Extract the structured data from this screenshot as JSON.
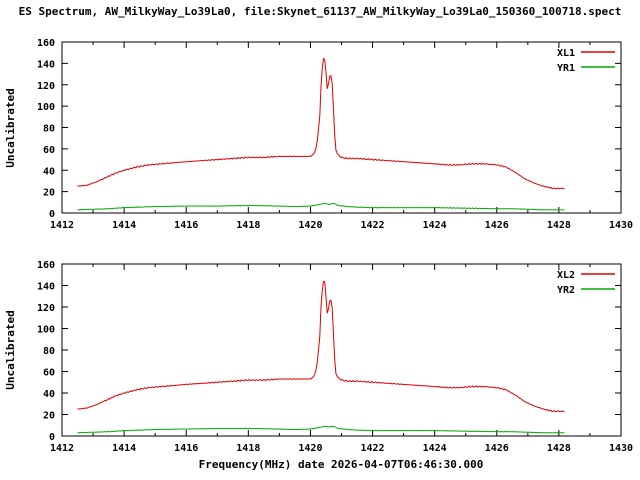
{
  "figure": {
    "title": "ES Spectrum, AW_MilkyWay_Lo39La0, file:Skynet_61137_AW_MilkyWay_Lo39La0_150360_100718.spect",
    "xlabel": "Frequency(MHz) date 2026-04-07T06:46:30.000",
    "ylabel": "Uncalibrated",
    "background": "#ffffff",
    "axis_color": "#000000"
  },
  "chart_data": [
    {
      "type": "line",
      "panel": "top",
      "xlim": [
        1412,
        1430
      ],
      "ylim": [
        0,
        160
      ],
      "xticks": [
        1412,
        1414,
        1416,
        1418,
        1420,
        1422,
        1424,
        1426,
        1428,
        1430
      ],
      "yticks": [
        0,
        20,
        40,
        60,
        80,
        100,
        120,
        140,
        160
      ],
      "grid": false,
      "legend_position": "top-right",
      "series": [
        {
          "name": "XL1",
          "color": "#dd0000",
          "x": [
            1412.5,
            1412.8,
            1413.1,
            1413.4,
            1413.7,
            1414.0,
            1414.4,
            1414.8,
            1415.2,
            1415.6,
            1416.0,
            1416.5,
            1417.0,
            1417.5,
            1418.0,
            1418.5,
            1419.0,
            1419.5,
            1419.8,
            1420.0,
            1420.1,
            1420.2,
            1420.3,
            1420.35,
            1420.4,
            1420.45,
            1420.5,
            1420.55,
            1420.6,
            1420.65,
            1420.7,
            1420.75,
            1420.8,
            1420.9,
            1421.0,
            1421.2,
            1421.5,
            1422.0,
            1422.5,
            1423.0,
            1423.5,
            1424.0,
            1424.4,
            1424.8,
            1425.2,
            1425.6,
            1426.0,
            1426.3,
            1426.6,
            1426.9,
            1427.2,
            1427.5,
            1427.8,
            1428.0,
            1428.2
          ],
          "y": [
            25,
            26,
            29,
            33,
            37,
            40,
            43,
            45,
            46,
            47,
            48,
            49,
            50,
            51,
            52,
            52,
            53,
            53,
            53,
            53,
            55,
            62,
            90,
            125,
            143,
            146,
            132,
            112,
            127,
            130,
            121,
            93,
            60,
            54,
            52,
            51,
            51,
            50,
            49,
            48,
            47,
            46,
            45,
            45,
            46,
            46,
            45,
            43,
            38,
            32,
            28,
            25,
            23,
            23,
            23
          ]
        },
        {
          "name": "YR1",
          "color": "#00aa00",
          "x": [
            1412.5,
            1413.0,
            1413.5,
            1414.0,
            1414.5,
            1415.0,
            1416.0,
            1417.0,
            1418.0,
            1419.0,
            1419.5,
            1420.0,
            1420.3,
            1420.45,
            1420.6,
            1420.75,
            1420.9,
            1421.2,
            1421.5,
            1422.0,
            1423.0,
            1424.0,
            1425.0,
            1426.0,
            1426.5,
            1427.0,
            1427.5,
            1428.0,
            1428.2
          ],
          "y": [
            3,
            3.5,
            4,
            5,
            5.5,
            6,
            6.5,
            6.5,
            7,
            6.5,
            6,
            6.5,
            8,
            9,
            8,
            9,
            7,
            6,
            5.5,
            5,
            5,
            5,
            4.5,
            4,
            4,
            3.5,
            3,
            3,
            3
          ]
        }
      ]
    },
    {
      "type": "line",
      "panel": "bottom",
      "xlim": [
        1412,
        1430
      ],
      "ylim": [
        0,
        160
      ],
      "xticks": [
        1412,
        1414,
        1416,
        1418,
        1420,
        1422,
        1424,
        1426,
        1428,
        1430
      ],
      "yticks": [
        0,
        20,
        40,
        60,
        80,
        100,
        120,
        140,
        160
      ],
      "grid": false,
      "legend_position": "top-right",
      "series": [
        {
          "name": "XL2",
          "color": "#dd0000",
          "x": [
            1412.5,
            1412.8,
            1413.1,
            1413.4,
            1413.7,
            1414.0,
            1414.4,
            1414.8,
            1415.2,
            1415.6,
            1416.0,
            1416.5,
            1417.0,
            1417.5,
            1418.0,
            1418.5,
            1419.0,
            1419.5,
            1419.8,
            1420.0,
            1420.1,
            1420.2,
            1420.3,
            1420.35,
            1420.4,
            1420.45,
            1420.5,
            1420.55,
            1420.6,
            1420.65,
            1420.7,
            1420.75,
            1420.8,
            1420.9,
            1421.0,
            1421.2,
            1421.5,
            1422.0,
            1422.5,
            1423.0,
            1423.5,
            1424.0,
            1424.4,
            1424.8,
            1425.2,
            1425.6,
            1426.0,
            1426.3,
            1426.6,
            1426.9,
            1427.2,
            1427.5,
            1427.8,
            1428.0,
            1428.2
          ],
          "y": [
            25,
            26,
            29,
            33,
            37,
            40,
            43,
            45,
            46,
            47,
            48,
            49,
            50,
            51,
            52,
            52,
            53,
            53,
            53,
            53,
            55,
            63,
            92,
            127,
            141,
            147,
            130,
            110,
            124,
            128,
            119,
            90,
            59,
            54,
            52,
            51,
            51,
            50,
            49,
            48,
            47,
            46,
            45,
            45,
            46,
            46,
            45,
            43,
            38,
            32,
            28,
            25,
            23,
            23,
            23
          ]
        },
        {
          "name": "YR2",
          "color": "#00aa00",
          "x": [
            1412.5,
            1413.0,
            1413.5,
            1414.0,
            1414.5,
            1415.0,
            1416.0,
            1417.0,
            1418.0,
            1419.0,
            1419.5,
            1420.0,
            1420.3,
            1420.45,
            1420.6,
            1420.75,
            1420.9,
            1421.2,
            1421.5,
            1422.0,
            1423.0,
            1424.0,
            1425.0,
            1426.0,
            1426.5,
            1427.0,
            1427.5,
            1428.0,
            1428.2
          ],
          "y": [
            3,
            3.5,
            4,
            5,
            5.5,
            6,
            6.5,
            7,
            7,
            6.5,
            6,
            6.5,
            8,
            9,
            8.5,
            9,
            7,
            6,
            5.5,
            5,
            5,
            5,
            4.5,
            4,
            4,
            3.5,
            3,
            3,
            3
          ]
        }
      ]
    }
  ]
}
